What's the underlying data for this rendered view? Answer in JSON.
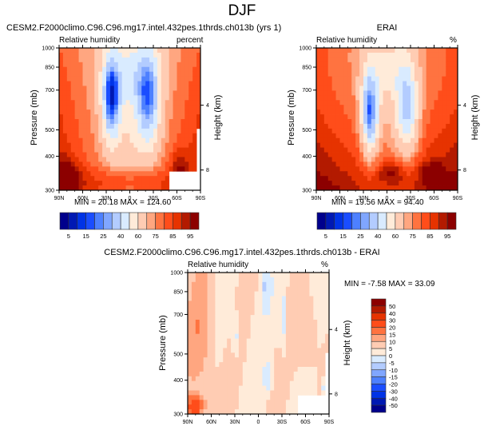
{
  "figure_title": "DJF",
  "colormap": [
    "#00008c",
    "#0019b3",
    "#0033e6",
    "#1a4dff",
    "#4d80ff",
    "#80a6ff",
    "#b3ccff",
    "#d9ebff",
    "#ffebd9",
    "#ffccb3",
    "#ffa680",
    "#ff7340",
    "#ff4d1a",
    "#e63300",
    "#b31a00",
    "#8c0000"
  ],
  "chart_data": [
    {
      "type": "heatmap",
      "id": "model",
      "title": "CESM2.F2000climo.C96.C96.mg17.intel.432pes.1thrds.ch013b (yrs 1)",
      "left_string": "Relative humidity",
      "right_string": "percent",
      "xlabel": "",
      "ylabel": "Pressure (mb)",
      "ylabel_right": "Height (km)",
      "x_ticks": [
        "90N",
        "60N",
        "30N",
        "0",
        "30S",
        "60S",
        "90S"
      ],
      "x_range": [
        90,
        -90
      ],
      "y_ticks": [
        "300",
        "400",
        "500",
        "700",
        "850",
        "1000"
      ],
      "y_range": [
        1000,
        300
      ],
      "y_right_ticks": [
        "8",
        "4"
      ],
      "min_max_text": "MIN =  20.18  MAX = 124.60",
      "colorbar": {
        "orientation": "horizontal",
        "labels": [
          "5",
          "15",
          "25",
          "40",
          "60",
          "75",
          "85",
          "95"
        ],
        "levels": [
          5,
          10,
          15,
          20,
          25,
          30,
          40,
          50,
          60,
          70,
          75,
          80,
          85,
          90,
          95
        ]
      }
    },
    {
      "type": "heatmap",
      "id": "obs",
      "title": "ERAI",
      "left_string": "Relative humidity",
      "right_string": "%",
      "ylabel": "Pressure (mb)",
      "ylabel_right": "Height (km)",
      "x_ticks": [
        "90N",
        "60N",
        "30N",
        "0",
        "30S",
        "60S",
        "90S"
      ],
      "x_range": [
        90,
        -90
      ],
      "y_ticks": [
        "300",
        "400",
        "500",
        "700",
        "850",
        "1000"
      ],
      "y_range": [
        1000,
        300
      ],
      "y_right_ticks": [
        "8",
        "4"
      ],
      "min_max_text": "MIN =  19.56  MAX =  94.40",
      "colorbar": {
        "orientation": "horizontal",
        "labels": [
          "5",
          "15",
          "25",
          "40",
          "60",
          "75",
          "85",
          "95"
        ],
        "levels": [
          5,
          10,
          15,
          20,
          25,
          30,
          40,
          50,
          60,
          70,
          75,
          80,
          85,
          90,
          95
        ]
      }
    },
    {
      "type": "heatmap",
      "id": "diff",
      "title": "CESM2.F2000climo.C96.C96.mg17.intel.432pes.1thrds.ch013b - ERAI",
      "left_string": "Relative humidity",
      "right_string": "%",
      "ylabel": "Pressure (mb)",
      "ylabel_right": "Height (km)",
      "x_ticks": [
        "90N",
        "60N",
        "30N",
        "0",
        "30S",
        "60S",
        "90S"
      ],
      "x_range": [
        90,
        -90
      ],
      "y_ticks": [
        "300",
        "400",
        "500",
        "700",
        "850",
        "1000"
      ],
      "y_range": [
        1000,
        300
      ],
      "y_right_ticks": [
        "8",
        "4"
      ],
      "min_max_text": "MIN =  -7.58  MAX =  33.09",
      "colorbar": {
        "orientation": "vertical",
        "labels": [
          "50",
          "40",
          "30",
          "20",
          "15",
          "10",
          "5",
          "0",
          "-5",
          "-10",
          "-15",
          "-20",
          "-30",
          "-40",
          "-50"
        ]
      }
    }
  ]
}
